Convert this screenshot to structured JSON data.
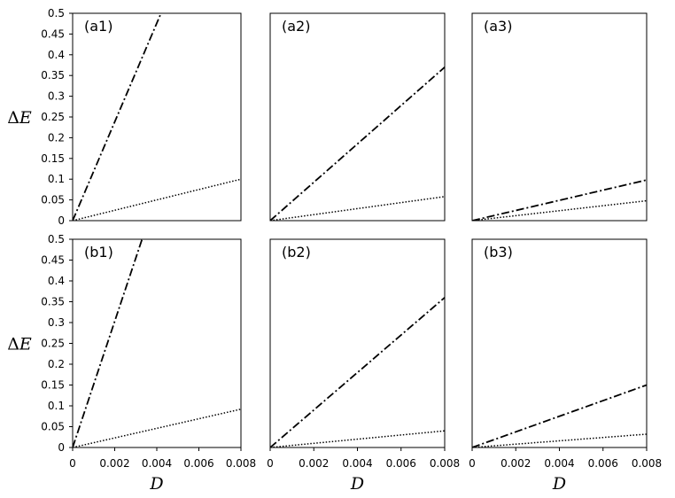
{
  "chart_data": [
    {
      "type": "line",
      "panel_label": "(a1)",
      "xlabel": "",
      "ylabel": "ΔE",
      "xlim": [
        0,
        0.008
      ],
      "ylim": [
        0,
        0.5
      ],
      "x_ticks": [
        "0",
        "0.002",
        "0.004",
        "0.006",
        "0.008"
      ],
      "y_ticks": [
        "0",
        "0.05",
        "0.1",
        "0.15",
        "0.2",
        "0.25",
        "0.3",
        "0.35",
        "0.4",
        "0.45",
        "0.5"
      ],
      "show_x_ticks": false,
      "show_y_ticks": true,
      "grid": false,
      "series": [
        {
          "style": "dash-dot",
          "x": [
            0,
            0.0042
          ],
          "y": [
            0,
            0.5
          ]
        },
        {
          "style": "dotted",
          "x": [
            0,
            0.008
          ],
          "y": [
            0,
            0.1
          ]
        }
      ]
    },
    {
      "type": "line",
      "panel_label": "(a2)",
      "xlabel": "",
      "ylabel": "",
      "xlim": [
        0,
        0.008
      ],
      "ylim": [
        0,
        0.5
      ],
      "x_ticks": [
        "0",
        "0.002",
        "0.004",
        "0.006",
        "0.008"
      ],
      "y_ticks": [],
      "show_x_ticks": false,
      "show_y_ticks": false,
      "grid": false,
      "series": [
        {
          "style": "dash-dot",
          "x": [
            0,
            0.008
          ],
          "y": [
            0,
            0.37
          ]
        },
        {
          "style": "dotted",
          "x": [
            0,
            0.008
          ],
          "y": [
            0,
            0.058
          ]
        }
      ]
    },
    {
      "type": "line",
      "panel_label": "(a3)",
      "xlabel": "",
      "ylabel": "",
      "xlim": [
        0,
        0.008
      ],
      "ylim": [
        0,
        0.5
      ],
      "x_ticks": [
        "0",
        "0.002",
        "0.004",
        "0.006",
        "0.008"
      ],
      "y_ticks": [],
      "show_x_ticks": false,
      "show_y_ticks": false,
      "grid": false,
      "series": [
        {
          "style": "dash-dot",
          "x": [
            0,
            0.008
          ],
          "y": [
            0,
            0.098
          ]
        },
        {
          "style": "dotted",
          "x": [
            0,
            0.008
          ],
          "y": [
            0,
            0.048
          ]
        }
      ]
    },
    {
      "type": "line",
      "panel_label": "(b1)",
      "xlabel": "D",
      "ylabel": "ΔE",
      "xlim": [
        0,
        0.008
      ],
      "ylim": [
        0,
        0.5
      ],
      "x_ticks": [
        "0",
        "0.002",
        "0.004",
        "0.006",
        "0.008"
      ],
      "y_ticks": [
        "0",
        "0.05",
        "0.1",
        "0.15",
        "0.2",
        "0.25",
        "0.3",
        "0.35",
        "0.4",
        "0.45",
        "0.5"
      ],
      "show_x_ticks": true,
      "show_y_ticks": true,
      "grid": false,
      "series": [
        {
          "style": "dash-dot",
          "x": [
            0,
            0.0033
          ],
          "y": [
            0,
            0.5
          ]
        },
        {
          "style": "dotted",
          "x": [
            0,
            0.008
          ],
          "y": [
            0,
            0.092
          ]
        }
      ]
    },
    {
      "type": "line",
      "panel_label": "(b2)",
      "xlabel": "D",
      "ylabel": "",
      "xlim": [
        0,
        0.008
      ],
      "ylim": [
        0,
        0.5
      ],
      "x_ticks": [
        "0",
        "0.002",
        "0.004",
        "0.006",
        "0.008"
      ],
      "y_ticks": [],
      "show_x_ticks": true,
      "show_y_ticks": false,
      "grid": false,
      "series": [
        {
          "style": "dash-dot",
          "x": [
            0,
            0.008
          ],
          "y": [
            0,
            0.36
          ]
        },
        {
          "style": "dotted",
          "x": [
            0,
            0.008
          ],
          "y": [
            0,
            0.04
          ]
        }
      ]
    },
    {
      "type": "line",
      "panel_label": "(b3)",
      "xlabel": "D",
      "ylabel": "",
      "xlim": [
        0,
        0.008
      ],
      "ylim": [
        0,
        0.5
      ],
      "x_ticks": [
        "0",
        "0.002",
        "0.004",
        "0.006",
        "0.008"
      ],
      "y_ticks": [],
      "show_x_ticks": true,
      "show_y_ticks": false,
      "grid": false,
      "series": [
        {
          "style": "dash-dot",
          "x": [
            0,
            0.008
          ],
          "y": [
            0,
            0.15
          ]
        },
        {
          "style": "dotted",
          "x": [
            0,
            0.008
          ],
          "y": [
            0,
            0.032
          ]
        }
      ]
    }
  ]
}
